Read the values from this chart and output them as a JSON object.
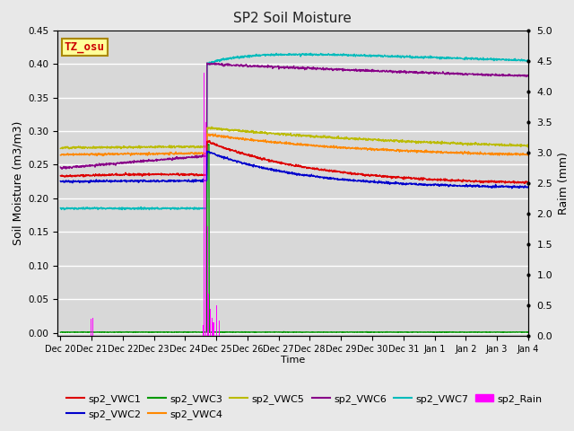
{
  "title": "SP2 Soil Moisture",
  "ylabel_left": "Soil Moisture (m3/m3)",
  "ylabel_right": "Raim (mm)",
  "xlabel": "Time",
  "xlim_days": [
    -0.1,
    15.5
  ],
  "ylim_left": [
    -0.005,
    0.45
  ],
  "ylim_right": [
    0,
    5.0
  ],
  "yticks_left": [
    0.0,
    0.05,
    0.1,
    0.15,
    0.2,
    0.25,
    0.3,
    0.35,
    0.4,
    0.45
  ],
  "yticks_right": [
    0.0,
    0.5,
    1.0,
    1.5,
    2.0,
    2.5,
    3.0,
    3.5,
    4.0,
    4.5,
    5.0
  ],
  "xtick_labels": [
    "Dec 20",
    "Dec 21",
    "Dec 22",
    "Dec 23",
    "Dec 24",
    "Dec 25",
    "Dec 26",
    "Dec 27",
    "Dec 28",
    "Dec 29",
    "Dec 30",
    "Dec 31",
    "Jan 1",
    "Jan 2",
    "Jan 3",
    "Jan 4"
  ],
  "annotation_text": "TZ_osu",
  "annotation_color": "#cc0000",
  "annotation_bg": "#ffff99",
  "annotation_border": "#aa8800",
  "fig_bg": "#e8e8e8",
  "plot_bg": "#d8d8d8",
  "grid_color": "#ffffff",
  "colors": {
    "sp2_VWC1": "#dd0000",
    "sp2_VWC2": "#0000cc",
    "sp2_VWC3": "#009900",
    "sp2_VWC4": "#ff8800",
    "sp2_VWC5": "#bbbb00",
    "sp2_VWC6": "#880088",
    "sp2_VWC7": "#00bbbb",
    "sp2_Rain": "#ff00ff"
  }
}
